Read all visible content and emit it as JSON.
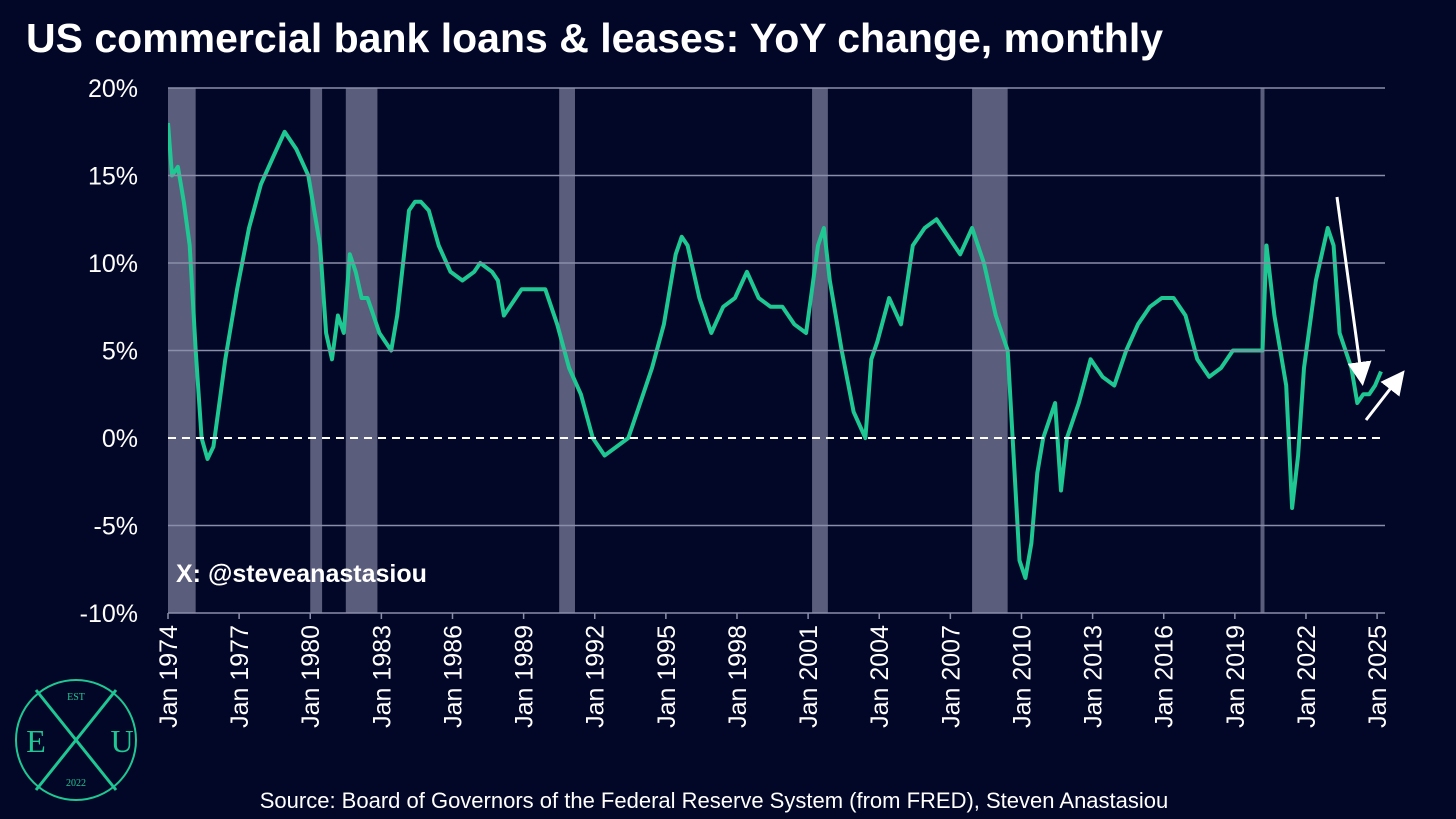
{
  "chart_data": {
    "type": "line",
    "title": "US commercial bank loans & leases: YoY change, monthly",
    "annotation": "X: @steveanastasiou",
    "source": "Source: Board of Governors of the Federal Reserve System (from FRED), Steven Anastasiou",
    "logo": {
      "top": "EST",
      "left": "E",
      "right": "U",
      "bottom": "2022"
    },
    "color": "#1fc792",
    "recession_color": "#5b5d7c",
    "grid": true,
    "xlim": [
      "1974-01",
      "2025-05"
    ],
    "ylim": [
      -10,
      20
    ],
    "yticks": [
      {
        "value": 20,
        "label": "20%"
      },
      {
        "value": 15,
        "label": "15%"
      },
      {
        "value": 10,
        "label": "10%"
      },
      {
        "value": 5,
        "label": "5%"
      },
      {
        "value": 0,
        "label": "0%"
      },
      {
        "value": -5,
        "label": "-5%"
      },
      {
        "value": -10,
        "label": "-10%"
      }
    ],
    "xticks": [
      {
        "value": "1974-01",
        "label": "Jan 1974"
      },
      {
        "value": "1977-01",
        "label": "Jan 1977"
      },
      {
        "value": "1980-01",
        "label": "Jan 1980"
      },
      {
        "value": "1983-01",
        "label": "Jan 1983"
      },
      {
        "value": "1986-01",
        "label": "Jan 1986"
      },
      {
        "value": "1989-01",
        "label": "Jan 1989"
      },
      {
        "value": "1992-01",
        "label": "Jan 1992"
      },
      {
        "value": "1995-01",
        "label": "Jan 1995"
      },
      {
        "value": "1998-01",
        "label": "Jan 1998"
      },
      {
        "value": "2001-01",
        "label": "Jan 2001"
      },
      {
        "value": "2004-01",
        "label": "Jan 2004"
      },
      {
        "value": "2007-01",
        "label": "Jan 2007"
      },
      {
        "value": "2010-01",
        "label": "Jan 2010"
      },
      {
        "value": "2013-01",
        "label": "Jan 2013"
      },
      {
        "value": "2016-01",
        "label": "Jan 2016"
      },
      {
        "value": "2019-01",
        "label": "Jan 2019"
      },
      {
        "value": "2022-01",
        "label": "Jan 2022"
      },
      {
        "value": "2025-01",
        "label": "Jan 2025"
      }
    ],
    "recessions": [
      [
        "1973-11",
        "1975-03"
      ],
      [
        "1980-01",
        "1980-07"
      ],
      [
        "1981-07",
        "1982-11"
      ],
      [
        "1990-07",
        "1991-03"
      ],
      [
        "2001-03",
        "2001-11"
      ],
      [
        "2007-12",
        "2009-06"
      ],
      [
        "2020-02",
        "2020-04"
      ]
    ],
    "x": [
      "1974-01",
      "1974-03",
      "1974-06",
      "1974-09",
      "1974-12",
      "1975-03",
      "1975-06",
      "1975-09",
      "1975-12",
      "1976-03",
      "1976-06",
      "1976-09",
      "1976-12",
      "1977-06",
      "1977-12",
      "1978-06",
      "1978-12",
      "1979-03",
      "1979-06",
      "1979-12",
      "1980-03",
      "1980-06",
      "1980-09",
      "1980-12",
      "1981-03",
      "1981-06",
      "1981-09",
      "1981-12",
      "1982-03",
      "1982-06",
      "1982-09",
      "1982-12",
      "1983-06",
      "1983-09",
      "1983-12",
      "1984-03",
      "1984-06",
      "1984-09",
      "1985-01",
      "1985-06",
      "1985-12",
      "1986-06",
      "1986-12",
      "1987-03",
      "1987-09",
      "1987-12",
      "1988-03",
      "1988-09",
      "1988-12",
      "1989-06",
      "1989-12",
      "1990-06",
      "1990-12",
      "1991-06",
      "1991-12",
      "1992-06",
      "1992-12",
      "1993-06",
      "1993-12",
      "1994-06",
      "1994-12",
      "1995-06",
      "1995-09",
      "1995-12",
      "1996-06",
      "1996-12",
      "1997-06",
      "1997-12",
      "1998-06",
      "1998-12",
      "1999-06",
      "1999-12",
      "2000-06",
      "2000-12",
      "2001-06",
      "2001-09",
      "2001-12",
      "2002-06",
      "2002-12",
      "2003-06",
      "2003-09",
      "2003-12",
      "2004-06",
      "2004-12",
      "2005-06",
      "2005-12",
      "2006-06",
      "2006-12",
      "2007-06",
      "2007-12",
      "2008-06",
      "2008-12",
      "2009-06",
      "2009-09",
      "2009-12",
      "2010-03",
      "2010-06",
      "2010-09",
      "2010-12",
      "2011-06",
      "2011-09",
      "2011-12",
      "2012-06",
      "2012-12",
      "2013-06",
      "2013-12",
      "2014-06",
      "2014-12",
      "2015-06",
      "2015-12",
      "2016-06",
      "2016-12",
      "2017-06",
      "2017-12",
      "2018-06",
      "2018-12",
      "2019-06",
      "2019-12",
      "2020-03",
      "2020-05",
      "2020-09",
      "2020-12",
      "2021-03",
      "2021-06",
      "2021-09",
      "2021-12",
      "2022-06",
      "2022-12",
      "2023-03",
      "2023-06",
      "2023-12",
      "2024-03",
      "2024-06",
      "2024-09",
      "2024-12",
      "2025-03"
    ],
    "values": [
      18,
      15,
      15.5,
      13.5,
      11,
      5,
      0,
      -1.2,
      -0.5,
      2,
      4.5,
      6.5,
      8.5,
      12,
      14.5,
      16,
      17.5,
      17,
      16.5,
      15,
      13,
      11,
      6,
      4.5,
      7,
      6,
      10.5,
      9.5,
      8,
      8,
      7,
      6,
      5,
      7,
      10,
      13,
      13.5,
      13.5,
      13,
      11,
      9.5,
      9,
      9.5,
      10,
      9.5,
      9,
      7,
      8,
      8.5,
      8.5,
      8.5,
      6.5,
      4,
      2.5,
      0,
      -1,
      -0.5,
      0,
      2,
      4,
      6.5,
      10.5,
      11.5,
      11,
      8,
      6,
      7.5,
      8,
      9.5,
      8,
      7.5,
      7.5,
      6.5,
      6,
      11,
      12,
      9,
      5,
      1.5,
      0,
      4.5,
      5.5,
      8,
      6.5,
      11,
      12,
      12.5,
      11.5,
      10.5,
      12,
      10,
      7,
      5,
      -1,
      -7,
      -8,
      -6,
      -2,
      0,
      2,
      -3,
      0,
      2,
      4.5,
      3.5,
      3,
      5,
      6.5,
      7.5,
      8,
      8,
      7,
      4.5,
      3.5,
      4,
      5,
      5,
      5,
      5,
      11,
      7,
      5,
      3,
      -4,
      -1,
      4,
      9,
      12,
      11,
      6,
      4,
      2,
      2.5,
      2.5,
      3,
      3.8
    ]
  }
}
